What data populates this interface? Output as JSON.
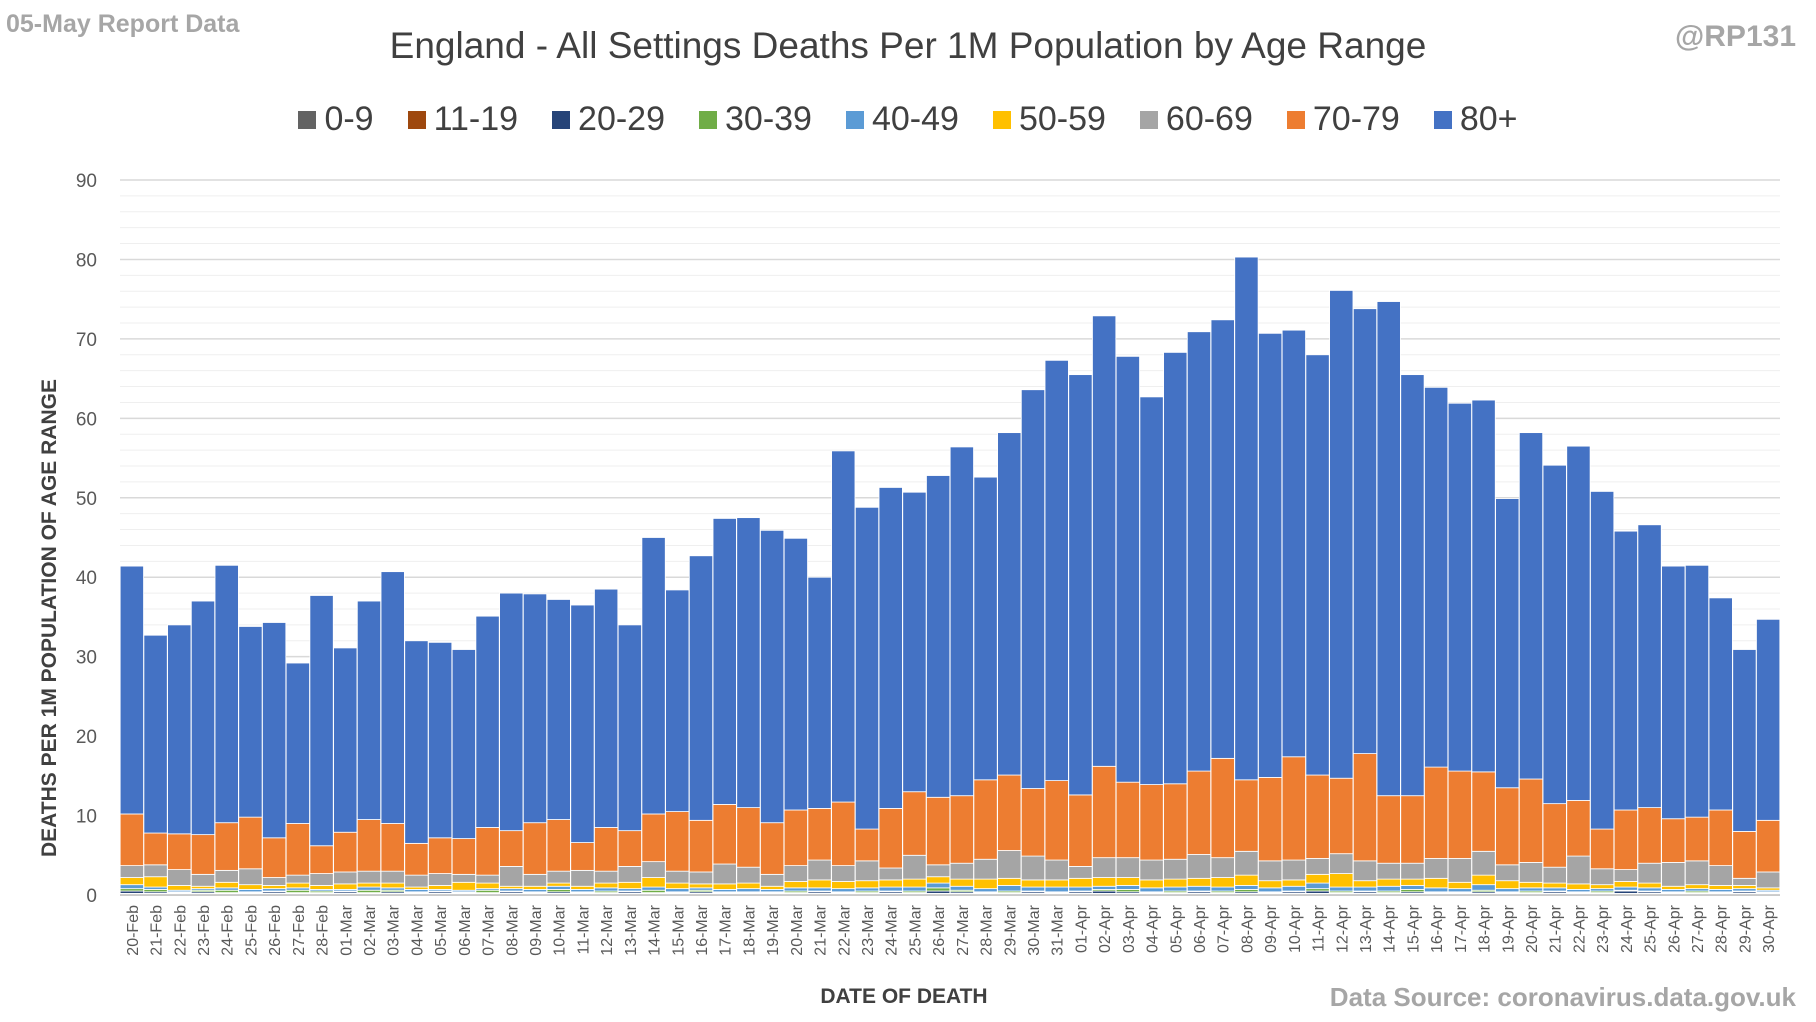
{
  "header": {
    "report_label": "05-May Report Data",
    "handle": "@RP131",
    "source": "Data Source: coronavirus.data.gov.uk"
  },
  "chart_data": {
    "type": "bar",
    "stacked": true,
    "title": "England - All Settings Deaths Per 1M Population by Age Range",
    "xlabel": "DATE OF DEATH",
    "ylabel": "DEATHS PER 1M POPULATION OF AGE RANGE",
    "ylim": [
      0,
      90
    ],
    "yticks": [
      0,
      10,
      20,
      30,
      40,
      50,
      60,
      70,
      80,
      90
    ],
    "grid": true,
    "legend_position": "top",
    "categories": [
      "20-Feb",
      "21-Feb",
      "22-Feb",
      "23-Feb",
      "24-Feb",
      "25-Feb",
      "26-Feb",
      "27-Feb",
      "28-Feb",
      "01-Mar",
      "02-Mar",
      "03-Mar",
      "04-Mar",
      "05-Mar",
      "06-Mar",
      "07-Mar",
      "08-Mar",
      "09-Mar",
      "10-Mar",
      "11-Mar",
      "12-Mar",
      "13-Mar",
      "14-Mar",
      "15-Mar",
      "16-Mar",
      "17-Mar",
      "18-Mar",
      "19-Mar",
      "20-Mar",
      "21-Mar",
      "22-Mar",
      "23-Mar",
      "24-Mar",
      "25-Mar",
      "26-Mar",
      "27-Mar",
      "28-Mar",
      "29-Mar",
      "30-Mar",
      "31-Mar",
      "01-Apr",
      "02-Apr",
      "03-Apr",
      "04-Apr",
      "05-Apr",
      "06-Apr",
      "07-Apr",
      "08-Apr",
      "09-Apr",
      "10-Apr",
      "11-Apr",
      "12-Apr",
      "13-Apr",
      "14-Apr",
      "15-Apr",
      "16-Apr",
      "17-Apr",
      "18-Apr",
      "19-Apr",
      "20-Apr",
      "21-Apr",
      "22-Apr",
      "23-Apr",
      "24-Apr",
      "25-Apr",
      "26-Apr",
      "27-Apr",
      "28-Apr",
      "29-Apr",
      "30-Apr"
    ],
    "series": [
      {
        "name": "0-9",
        "color": "#636363",
        "values": [
          0.1,
          0.1,
          0.1,
          0.1,
          0.1,
          0.1,
          0.1,
          0.1,
          0.1,
          0.1,
          0.1,
          0.1,
          0.1,
          0.1,
          0.1,
          0.1,
          0.1,
          0.1,
          0.1,
          0.1,
          0.1,
          0.1,
          0.1,
          0.1,
          0.1,
          0.1,
          0.1,
          0.1,
          0.1,
          0.1,
          0.1,
          0.1,
          0.1,
          0.1,
          0.1,
          0.1,
          0.1,
          0.1,
          0.1,
          0.1,
          0.1,
          0.1,
          0.1,
          0.1,
          0.1,
          0.1,
          0.1,
          0.1,
          0.1,
          0.1,
          0.1,
          0.1,
          0.1,
          0.1,
          0.1,
          0.1,
          0.1,
          0.1,
          0.1,
          0.1,
          0.1,
          0.1,
          0.1,
          0.1,
          0.1,
          0.1,
          0.1,
          0.1,
          0.1,
          0.1
        ]
      },
      {
        "name": "11-19",
        "color": "#9e480e",
        "values": [
          0.1,
          0.1,
          0.1,
          0.1,
          0.1,
          0.1,
          0.1,
          0.1,
          0.1,
          0.1,
          0.1,
          0.1,
          0.1,
          0.1,
          0.1,
          0.1,
          0.1,
          0.1,
          0.1,
          0.1,
          0.1,
          0.1,
          0.1,
          0.1,
          0.1,
          0.1,
          0.1,
          0.1,
          0.1,
          0.1,
          0.1,
          0.1,
          0.1,
          0.1,
          0.1,
          0.1,
          0.1,
          0.1,
          0.1,
          0.1,
          0.1,
          0.1,
          0.1,
          0.1,
          0.1,
          0.1,
          0.1,
          0.1,
          0.1,
          0.1,
          0.1,
          0.1,
          0.1,
          0.1,
          0.1,
          0.1,
          0.1,
          0.1,
          0.1,
          0.1,
          0.1,
          0.1,
          0.1,
          0.1,
          0.1,
          0.1,
          0.1,
          0.1,
          0.1,
          0.1
        ]
      },
      {
        "name": "20-29",
        "color": "#264478",
        "values": [
          0.3,
          0.2,
          0.1,
          0.2,
          0.1,
          0.1,
          0.2,
          0.1,
          0.1,
          0.2,
          0.1,
          0.2,
          0.1,
          0.2,
          0.1,
          0.1,
          0.2,
          0.1,
          0.2,
          0.1,
          0.1,
          0.2,
          0.1,
          0.1,
          0.2,
          0.1,
          0.1,
          0.1,
          0.1,
          0.2,
          0.1,
          0.1,
          0.2,
          0.1,
          0.3,
          0.2,
          0.1,
          0.1,
          0.2,
          0.1,
          0.2,
          0.3,
          0.2,
          0.1,
          0.1,
          0.2,
          0.1,
          0.2,
          0.1,
          0.2,
          0.3,
          0.1,
          0.2,
          0.1,
          0.2,
          0.1,
          0.1,
          0.2,
          0.1,
          0.1,
          0.2,
          0.1,
          0.1,
          0.3,
          0.2,
          0.1,
          0.1,
          0.1,
          0.2,
          0.1
        ]
      },
      {
        "name": "30-39",
        "color": "#70ad47",
        "values": [
          0.3,
          0.3,
          0.1,
          0.2,
          0.3,
          0.1,
          0.1,
          0.3,
          0.2,
          0.1,
          0.3,
          0.2,
          0.1,
          0.1,
          0.1,
          0.3,
          0.1,
          0.1,
          0.3,
          0.1,
          0.2,
          0.1,
          0.3,
          0.1,
          0.2,
          0.1,
          0.1,
          0.1,
          0.2,
          0.1,
          0.1,
          0.2,
          0.1,
          0.2,
          0.4,
          0.2,
          0.1,
          0.2,
          0.1,
          0.1,
          0.1,
          0.2,
          0.3,
          0.1,
          0.2,
          0.1,
          0.2,
          0.3,
          0.1,
          0.1,
          0.3,
          0.2,
          0.1,
          0.2,
          0.3,
          0.1,
          0.1,
          0.2,
          0.1,
          0.2,
          0.1,
          0.1,
          0.2,
          0.1,
          0.1,
          0.1,
          0.2,
          0.1,
          0.1,
          0.1
        ]
      },
      {
        "name": "40-49",
        "color": "#5b9bd5",
        "values": [
          0.5,
          0.3,
          0.2,
          0.2,
          0.3,
          0.3,
          0.3,
          0.3,
          0.2,
          0.2,
          0.4,
          0.3,
          0.3,
          0.2,
          0.2,
          0.2,
          0.3,
          0.3,
          0.4,
          0.3,
          0.4,
          0.3,
          0.4,
          0.4,
          0.3,
          0.3,
          0.4,
          0.3,
          0.4,
          0.4,
          0.4,
          0.4,
          0.5,
          0.5,
          0.6,
          0.5,
          0.4,
          0.7,
          0.5,
          0.6,
          0.5,
          0.4,
          0.5,
          0.5,
          0.5,
          0.6,
          0.5,
          0.5,
          0.5,
          0.6,
          0.7,
          0.5,
          0.5,
          0.6,
          0.5,
          0.5,
          0.4,
          0.7,
          0.4,
          0.4,
          0.4,
          0.3,
          0.3,
          0.4,
          0.4,
          0.3,
          0.3,
          0.3,
          0.3,
          0.2
        ]
      },
      {
        "name": "50-59",
        "color": "#ffc000",
        "values": [
          0.9,
          1.3,
          0.6,
          0.3,
          0.7,
          0.6,
          0.4,
          0.6,
          0.5,
          0.7,
          0.5,
          0.6,
          0.3,
          0.5,
          1.0,
          0.7,
          0.3,
          0.4,
          0.4,
          0.4,
          0.6,
          0.8,
          1.2,
          0.7,
          0.5,
          0.7,
          0.7,
          0.4,
          0.8,
          1.0,
          0.9,
          0.9,
          0.9,
          1.0,
          0.8,
          0.9,
          1.2,
          0.9,
          0.9,
          0.9,
          1.1,
          1.1,
          1.0,
          1.0,
          1.0,
          1.0,
          1.2,
          1.3,
          0.9,
          0.8,
          1.1,
          1.7,
          0.8,
          0.9,
          0.8,
          1.2,
          0.8,
          1.2,
          1.0,
          0.7,
          0.6,
          0.7,
          0.5,
          0.7,
          0.6,
          0.4,
          0.5,
          0.5,
          0.4,
          0.3
        ]
      },
      {
        "name": "60-69",
        "color": "#a5a5a5",
        "values": [
          1.5,
          1.5,
          2.0,
          1.5,
          1.5,
          2.0,
          1.0,
          1.0,
          1.5,
          1.5,
          1.5,
          1.5,
          1.5,
          1.5,
          1.0,
          1.0,
          2.5,
          1.5,
          1.5,
          2.0,
          1.5,
          2.0,
          2.0,
          1.5,
          1.5,
          2.5,
          2.0,
          1.5,
          2.0,
          2.5,
          2.0,
          2.5,
          1.5,
          3.0,
          1.5,
          2.0,
          2.5,
          3.5,
          3.0,
          2.5,
          1.5,
          2.5,
          2.5,
          2.5,
          2.5,
          3.0,
          2.5,
          3.0,
          2.5,
          2.5,
          2.0,
          2.5,
          2.5,
          2.0,
          2.0,
          2.5,
          3.0,
          3.0,
          2.0,
          2.5,
          2.0,
          3.5,
          2.0,
          1.5,
          2.5,
          3.0,
          3.0,
          2.5,
          0.9,
          2.0
        ]
      },
      {
        "name": "70-79",
        "color": "#ed7d31",
        "values": [
          6.5,
          4.0,
          4.5,
          5.0,
          6.0,
          6.5,
          5.0,
          6.5,
          3.5,
          5.0,
          6.5,
          6.0,
          4.0,
          4.5,
          4.5,
          6.0,
          4.5,
          6.5,
          6.5,
          3.5,
          5.5,
          4.5,
          6.0,
          7.5,
          6.5,
          7.5,
          7.5,
          6.5,
          7.0,
          6.5,
          8.0,
          4.0,
          7.5,
          8.0,
          8.5,
          8.5,
          10.0,
          9.5,
          8.5,
          10.0,
          9.0,
          11.5,
          9.5,
          9.5,
          9.5,
          10.5,
          12.5,
          9.0,
          10.5,
          13.0,
          10.5,
          9.5,
          13.5,
          8.5,
          8.5,
          11.5,
          11.0,
          10.0,
          9.7,
          10.5,
          8.0,
          7.0,
          5.0,
          7.5,
          7.0,
          5.5,
          5.5,
          7.0,
          5.9,
          6.5
        ]
      },
      {
        "name": "80+",
        "color": "#4472c4",
        "values": [
          31.2,
          24.9,
          26.3,
          29.4,
          32.4,
          24.0,
          27.1,
          20.2,
          31.5,
          23.2,
          27.5,
          31.7,
          25.5,
          24.6,
          23.8,
          26.6,
          29.9,
          28.8,
          27.7,
          29.9,
          30.0,
          25.9,
          34.8,
          27.9,
          33.3,
          36.0,
          36.5,
          36.8,
          34.2,
          29.1,
          44.2,
          40.5,
          40.4,
          37.7,
          40.5,
          43.9,
          38.1,
          43.1,
          50.2,
          52.9,
          52.9,
          56.7,
          53.6,
          48.8,
          54.3,
          55.3,
          55.2,
          65.8,
          55.9,
          53.7,
          52.9,
          61.4,
          56.0,
          62.2,
          53.0,
          47.8,
          46.3,
          46.8,
          36.4,
          43.6,
          42.6,
          44.6,
          42.5,
          35.1,
          35.6,
          31.8,
          31.7,
          26.7,
          22.9,
          25.3
        ]
      }
    ]
  }
}
